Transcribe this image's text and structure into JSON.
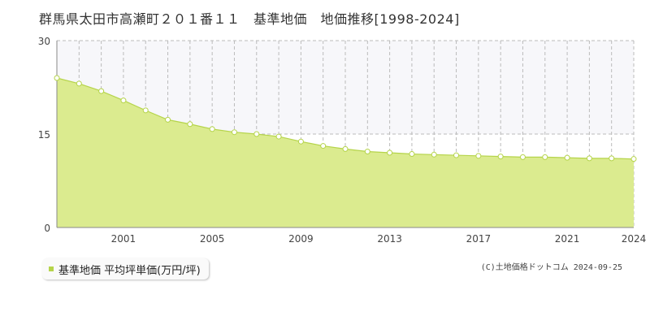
{
  "title": "群馬県太田市高瀬町２０１番１１　基準地価　地価推移[1998-2024]",
  "legend": {
    "label": "基準地価 平均坪単価(万円/坪)"
  },
  "copyright": "(C)土地価格ドットコム 2024-09-25",
  "colors": {
    "fill": "#dbeb8f",
    "line": "#b5d44a",
    "grid": "#bbbbbb",
    "axis": "#888888",
    "band": "#f7f7fa"
  },
  "chart_data": {
    "type": "area",
    "x": [
      1998,
      1999,
      2000,
      2001,
      2002,
      2003,
      2004,
      2005,
      2006,
      2007,
      2008,
      2009,
      2010,
      2011,
      2012,
      2013,
      2014,
      2015,
      2016,
      2017,
      2018,
      2019,
      2020,
      2021,
      2022,
      2023,
      2024
    ],
    "values": [
      24.0,
      23.1,
      21.9,
      20.4,
      18.8,
      17.3,
      16.6,
      15.8,
      15.3,
      15.0,
      14.6,
      13.8,
      13.1,
      12.6,
      12.2,
      12.0,
      11.8,
      11.7,
      11.6,
      11.5,
      11.4,
      11.3,
      11.3,
      11.2,
      11.1,
      11.1,
      11.0
    ],
    "ylim": [
      0,
      30
    ],
    "xlim": [
      1998,
      2024
    ],
    "yticks": [
      "0",
      "15",
      "30"
    ],
    "xticks": [
      "2001",
      "2005",
      "2009",
      "2013",
      "2017",
      "2021",
      "2024"
    ],
    "xtick_values": [
      2001,
      2005,
      2009,
      2013,
      2017,
      2021,
      2024
    ],
    "grid": true
  }
}
